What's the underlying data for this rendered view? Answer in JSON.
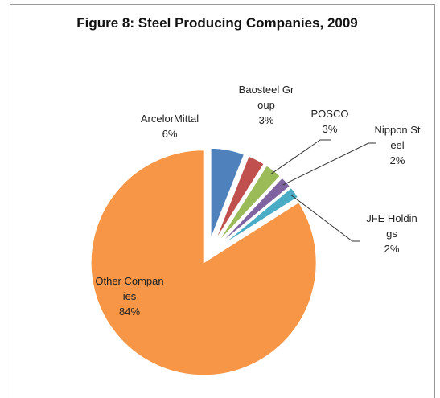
{
  "chart_data": {
    "type": "pie",
    "title": "Figure 8: Steel Producing Companies, 2009",
    "categories": [
      "ArcelorMittal",
      "Baosteel Group",
      "POSCO",
      "Nippon Steel",
      "JFE Holdings",
      "Other Companies"
    ],
    "values": [
      6,
      3,
      3,
      2,
      2,
      84
    ],
    "value_labels": [
      "6%",
      "3%",
      "3%",
      "2%",
      "2%",
      "84%"
    ],
    "colors": [
      "#4f81bd",
      "#c0504d",
      "#9bbb59",
      "#8064a2",
      "#4bacc6",
      "#f79646"
    ]
  }
}
